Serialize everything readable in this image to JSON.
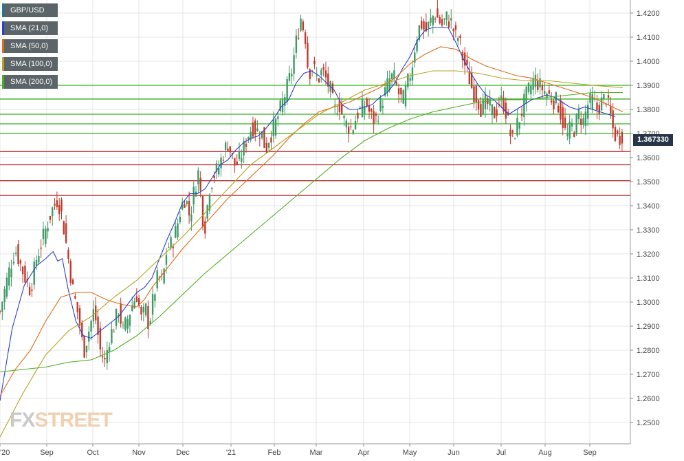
{
  "chart_data": {
    "type": "candlestick",
    "title": "GBP/USD",
    "ylim": [
      1.243,
      1.428
    ],
    "y_ticks": [
      "1.4200",
      "1.4100",
      "1.4000",
      "1.3900",
      "1.3800",
      "1.3700",
      "1.3600",
      "1.3500",
      "1.3400",
      "1.3300",
      "1.3200",
      "1.3100",
      "1.3000",
      "1.2900",
      "1.2800",
      "1.2700",
      "1.2600",
      "1.2500"
    ],
    "x_ticks": [
      "'20",
      "Sep",
      "Oct",
      "Nov",
      "Dec",
      "'21",
      "Feb",
      "Mar",
      "Apr",
      "May",
      "Jun",
      "Jul",
      "Aug",
      "Sep"
    ],
    "last_price": "1.367330",
    "series": [
      {
        "name": "SMA (21,0)",
        "color": "#2a3fd1"
      },
      {
        "name": "SMA (50,0)",
        "color": "#e06a16"
      },
      {
        "name": "SMA (100,0)",
        "color": "#b9a11f"
      },
      {
        "name": "SMA (200,0)",
        "color": "#4caf1d"
      }
    ],
    "close_path": [
      [
        0,
        1.296
      ],
      [
        2,
        1.302
      ],
      [
        6,
        1.313
      ],
      [
        10,
        1.322
      ],
      [
        16,
        1.311
      ],
      [
        20,
        1.305
      ],
      [
        24,
        1.318
      ],
      [
        29,
        1.328
      ],
      [
        34,
        1.338
      ],
      [
        38,
        1.343
      ],
      [
        41,
        1.335
      ],
      [
        45,
        1.318
      ],
      [
        48,
        1.305
      ],
      [
        52,
        1.293
      ],
      [
        55,
        1.279
      ],
      [
        58,
        1.287
      ],
      [
        62,
        1.297
      ],
      [
        66,
        1.28
      ],
      [
        69,
        1.275
      ],
      [
        72,
        1.285
      ],
      [
        75,
        1.29
      ],
      [
        78,
        1.297
      ],
      [
        81,
        1.288
      ],
      [
        84,
        1.293
      ],
      [
        87,
        1.299
      ],
      [
        90,
        1.303
      ],
      [
        93,
        1.293
      ],
      [
        96,
        1.297
      ],
      [
        98,
        1.29
      ],
      [
        101,
        1.302
      ],
      [
        104,
        1.311
      ],
      [
        107,
        1.308
      ],
      [
        110,
        1.323
      ],
      [
        113,
        1.324
      ],
      [
        116,
        1.33
      ],
      [
        119,
        1.339
      ],
      [
        122,
        1.344
      ],
      [
        125,
        1.335
      ],
      [
        128,
        1.347
      ],
      [
        131,
        1.355
      ],
      [
        133,
        1.336
      ],
      [
        135,
        1.332
      ],
      [
        138,
        1.348
      ],
      [
        141,
        1.353
      ],
      [
        144,
        1.356
      ],
      [
        147,
        1.362
      ],
      [
        150,
        1.366
      ],
      [
        152,
        1.362
      ],
      [
        154,
        1.357
      ],
      [
        157,
        1.358
      ],
      [
        160,
        1.363
      ],
      [
        163,
        1.369
      ],
      [
        166,
        1.373
      ],
      [
        169,
        1.371
      ],
      [
        172,
        1.371
      ],
      [
        175,
        1.363
      ],
      [
        177,
        1.368
      ],
      [
        180,
        1.372
      ],
      [
        183,
        1.377
      ],
      [
        186,
        1.383
      ],
      [
        189,
        1.389
      ],
      [
        192,
        1.396
      ],
      [
        195,
        1.408
      ],
      [
        198,
        1.418
      ],
      [
        201,
        1.41
      ],
      [
        203,
        1.395
      ],
      [
        206,
        1.398
      ],
      [
        209,
        1.392
      ],
      [
        212,
        1.396
      ],
      [
        215,
        1.392
      ],
      [
        218,
        1.387
      ],
      [
        220,
        1.379
      ],
      [
        223,
        1.383
      ],
      [
        226,
        1.376
      ],
      [
        229,
        1.373
      ],
      [
        232,
        1.372
      ],
      [
        235,
        1.378
      ],
      [
        238,
        1.38
      ],
      [
        241,
        1.383
      ],
      [
        244,
        1.377
      ],
      [
        247,
        1.375
      ],
      [
        250,
        1.381
      ],
      [
        253,
        1.386
      ],
      [
        256,
        1.392
      ],
      [
        259,
        1.394
      ],
      [
        262,
        1.387
      ],
      [
        265,
        1.383
      ],
      [
        268,
        1.39
      ],
      [
        271,
        1.397
      ],
      [
        274,
        1.41
      ],
      [
        277,
        1.416
      ],
      [
        280,
        1.412
      ],
      [
        283,
        1.416
      ],
      [
        286,
        1.42
      ],
      [
        289,
        1.417
      ],
      [
        291,
        1.415
      ],
      [
        294,
        1.418
      ],
      [
        297,
        1.416
      ],
      [
        300,
        1.41
      ],
      [
        302,
        1.41
      ],
      [
        305,
        1.4
      ],
      [
        308,
        1.395
      ],
      [
        311,
        1.388
      ],
      [
        314,
        1.385
      ],
      [
        317,
        1.38
      ],
      [
        320,
        1.383
      ],
      [
        323,
        1.38
      ],
      [
        326,
        1.378
      ],
      [
        329,
        1.384
      ],
      [
        332,
        1.382
      ],
      [
        335,
        1.373
      ],
      [
        337,
        1.366
      ],
      [
        340,
        1.373
      ],
      [
        343,
        1.378
      ],
      [
        346,
        1.385
      ],
      [
        349,
        1.389
      ],
      [
        352,
        1.393
      ],
      [
        355,
        1.39
      ],
      [
        358,
        1.388
      ],
      [
        361,
        1.386
      ],
      [
        364,
        1.384
      ],
      [
        367,
        1.383
      ],
      [
        370,
        1.376
      ],
      [
        373,
        1.368
      ],
      [
        376,
        1.373
      ],
      [
        378,
        1.372
      ],
      [
        381,
        1.378
      ],
      [
        384,
        1.375
      ],
      [
        387,
        1.382
      ],
      [
        390,
        1.384
      ],
      [
        393,
        1.38
      ],
      [
        396,
        1.383
      ],
      [
        399,
        1.385
      ],
      [
        402,
        1.377
      ],
      [
        404,
        1.37
      ],
      [
        407,
        1.368
      ],
      [
        410,
        1.37
      ]
    ],
    "sma_paths": [
      [
        [
          0,
          1.259
        ],
        [
          8,
          1.289
        ],
        [
          16,
          1.307
        ],
        [
          24,
          1.315
        ],
        [
          30,
          1.318
        ],
        [
          35,
          1.321
        ],
        [
          38,
          1.317
        ],
        [
          41,
          1.318
        ],
        [
          45,
          1.305
        ],
        [
          50,
          1.292
        ],
        [
          55,
          1.286
        ],
        [
          60,
          1.285
        ],
        [
          66,
          1.288
        ],
        [
          72,
          1.291
        ],
        [
          78,
          1.294
        ],
        [
          84,
          1.299
        ],
        [
          90,
          1.304
        ],
        [
          95,
          1.306
        ],
        [
          100,
          1.31
        ],
        [
          105,
          1.318
        ],
        [
          110,
          1.326
        ],
        [
          115,
          1.333
        ],
        [
          120,
          1.341
        ],
        [
          125,
          1.345
        ],
        [
          130,
          1.345
        ],
        [
          135,
          1.347
        ],
        [
          140,
          1.352
        ],
        [
          145,
          1.357
        ],
        [
          150,
          1.359
        ],
        [
          155,
          1.363
        ],
        [
          160,
          1.366
        ],
        [
          165,
          1.368
        ],
        [
          170,
          1.369
        ],
        [
          175,
          1.372
        ],
        [
          180,
          1.376
        ],
        [
          185,
          1.381
        ],
        [
          190,
          1.384
        ],
        [
          195,
          1.391
        ],
        [
          200,
          1.395
        ],
        [
          205,
          1.396
        ],
        [
          210,
          1.394
        ],
        [
          215,
          1.391
        ],
        [
          220,
          1.388
        ],
        [
          225,
          1.382
        ],
        [
          230,
          1.38
        ],
        [
          235,
          1.38
        ],
        [
          240,
          1.381
        ],
        [
          245,
          1.382
        ],
        [
          250,
          1.385
        ],
        [
          255,
          1.387
        ],
        [
          260,
          1.391
        ],
        [
          265,
          1.397
        ],
        [
          270,
          1.402
        ],
        [
          275,
          1.409
        ],
        [
          280,
          1.413
        ],
        [
          285,
          1.414
        ],
        [
          290,
          1.414
        ],
        [
          295,
          1.414
        ],
        [
          300,
          1.408
        ],
        [
          305,
          1.401
        ],
        [
          310,
          1.395
        ],
        [
          315,
          1.39
        ],
        [
          320,
          1.386
        ],
        [
          325,
          1.384
        ],
        [
          330,
          1.381
        ],
        [
          335,
          1.378
        ],
        [
          340,
          1.38
        ],
        [
          345,
          1.382
        ],
        [
          350,
          1.384
        ],
        [
          355,
          1.385
        ],
        [
          360,
          1.386
        ],
        [
          365,
          1.385
        ],
        [
          370,
          1.383
        ],
        [
          375,
          1.381
        ],
        [
          380,
          1.38
        ],
        [
          385,
          1.381
        ],
        [
          390,
          1.38
        ],
        [
          395,
          1.379
        ],
        [
          400,
          1.378
        ],
        [
          405,
          1.377
        ]
      ],
      [
        [
          0,
          1.261
        ],
        [
          10,
          1.272
        ],
        [
          20,
          1.28
        ],
        [
          30,
          1.292
        ],
        [
          40,
          1.302
        ],
        [
          50,
          1.304
        ],
        [
          60,
          1.304
        ],
        [
          70,
          1.301
        ],
        [
          80,
          1.299
        ],
        [
          90,
          1.298
        ],
        [
          95,
          1.301
        ],
        [
          100,
          1.306
        ],
        [
          110,
          1.314
        ],
        [
          120,
          1.322
        ],
        [
          130,
          1.329
        ],
        [
          140,
          1.336
        ],
        [
          150,
          1.343
        ],
        [
          160,
          1.349
        ],
        [
          170,
          1.355
        ],
        [
          180,
          1.361
        ],
        [
          190,
          1.368
        ],
        [
          200,
          1.374
        ],
        [
          210,
          1.379
        ],
        [
          220,
          1.381
        ],
        [
          230,
          1.383
        ],
        [
          240,
          1.386
        ],
        [
          250,
          1.389
        ],
        [
          260,
          1.393
        ],
        [
          270,
          1.399
        ],
        [
          280,
          1.403
        ],
        [
          290,
          1.406
        ],
        [
          300,
          1.405
        ],
        [
          310,
          1.401
        ],
        [
          320,
          1.398
        ],
        [
          330,
          1.396
        ],
        [
          340,
          1.394
        ],
        [
          350,
          1.393
        ],
        [
          360,
          1.391
        ],
        [
          370,
          1.389
        ],
        [
          380,
          1.387
        ],
        [
          390,
          1.385
        ],
        [
          400,
          1.382
        ],
        [
          410,
          1.379
        ]
      ],
      [
        [
          0,
          1.244
        ],
        [
          15,
          1.262
        ],
        [
          30,
          1.278
        ],
        [
          45,
          1.288
        ],
        [
          60,
          1.294
        ],
        [
          75,
          1.302
        ],
        [
          90,
          1.309
        ],
        [
          105,
          1.318
        ],
        [
          120,
          1.327
        ],
        [
          135,
          1.337
        ],
        [
          150,
          1.347
        ],
        [
          165,
          1.357
        ],
        [
          180,
          1.364
        ],
        [
          195,
          1.371
        ],
        [
          210,
          1.378
        ],
        [
          225,
          1.383
        ],
        [
          240,
          1.388
        ],
        [
          255,
          1.391
        ],
        [
          270,
          1.394
        ],
        [
          285,
          1.396
        ],
        [
          300,
          1.396
        ],
        [
          315,
          1.395
        ],
        [
          330,
          1.393
        ],
        [
          345,
          1.392
        ],
        [
          360,
          1.392
        ],
        [
          375,
          1.391
        ],
        [
          390,
          1.39
        ],
        [
          410,
          1.389
        ]
      ],
      [
        [
          0,
          1.271
        ],
        [
          15,
          1.272
        ],
        [
          30,
          1.273
        ],
        [
          45,
          1.275
        ],
        [
          60,
          1.276
        ],
        [
          75,
          1.28
        ],
        [
          90,
          1.286
        ],
        [
          105,
          1.294
        ],
        [
          120,
          1.303
        ],
        [
          135,
          1.312
        ],
        [
          150,
          1.32
        ],
        [
          165,
          1.328
        ],
        [
          180,
          1.336
        ],
        [
          195,
          1.344
        ],
        [
          210,
          1.352
        ],
        [
          225,
          1.36
        ],
        [
          240,
          1.367
        ],
        [
          255,
          1.372
        ],
        [
          270,
          1.376
        ],
        [
          285,
          1.379
        ],
        [
          300,
          1.381
        ],
        [
          315,
          1.383
        ],
        [
          330,
          1.384
        ],
        [
          345,
          1.384
        ],
        [
          360,
          1.385
        ],
        [
          375,
          1.386
        ],
        [
          390,
          1.387
        ],
        [
          410,
          1.387
        ]
      ]
    ],
    "hlines_green": [
      1.39,
      1.3843,
      1.378,
      1.374,
      1.37
    ],
    "hlines_red": [
      1.3625,
      1.357,
      1.3504,
      1.3443
    ]
  },
  "legend": {
    "title": "GBP/USD",
    "items": [
      "SMA (21,0)",
      "SMA (50,0)",
      "SMA (100,0)",
      "SMA (200,0)"
    ]
  },
  "price_tag": "1.367330",
  "watermark": {
    "part1": "FX",
    "part2": "STREET"
  },
  "colors": {
    "up": "#3c9a63",
    "down": "#c0392b",
    "green_level": "#34b01f",
    "red_level": "#b2231c",
    "grid": "#e4e4e4",
    "legend_bg": "#5b6468"
  }
}
